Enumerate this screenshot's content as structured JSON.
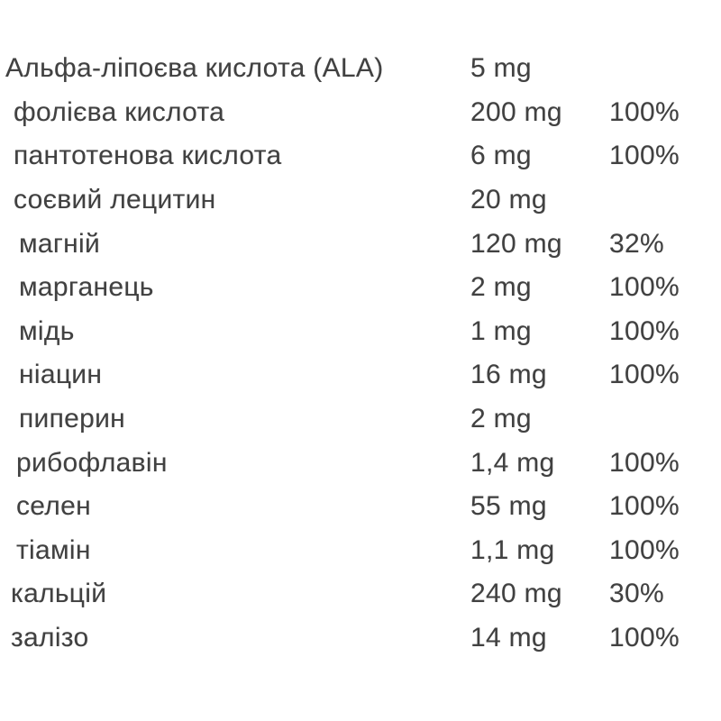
{
  "page": {
    "background_color": "#ffffff",
    "text_color": "#414141"
  },
  "supplement_facts": {
    "columns": [
      "nutrient",
      "amount",
      "daily_value_percent"
    ],
    "rows": [
      {
        "name": "Альфа-ліпоєва кислота (ALA)",
        "amount": "5 mg",
        "daily_value": ""
      },
      {
        "name": "фолієва кислота",
        "amount": "200 mg",
        "daily_value": "100%"
      },
      {
        "name": "пантотенова кислота",
        "amount": "6 mg",
        "daily_value": "100%"
      },
      {
        "name": "соєвий лецитин",
        "amount": "20 mg",
        "daily_value": ""
      },
      {
        "name": "магній",
        "amount": "120 mg",
        "daily_value": "32%"
      },
      {
        "name": "марганець",
        "amount": "2 mg",
        "daily_value": "100%"
      },
      {
        "name": "мідь",
        "amount": "1 mg",
        "daily_value": "100%"
      },
      {
        "name": "ніацин",
        "amount": "16 mg",
        "daily_value": "100%"
      },
      {
        "name": "пиперин",
        "amount": "2 mg",
        "daily_value": ""
      },
      {
        "name": "рибофлавін",
        "amount": "1,4 mg",
        "daily_value": "100%"
      },
      {
        "name": "селен",
        "amount": "55 mg",
        "daily_value": "100%"
      },
      {
        "name": "тіамін",
        "amount": "1,1 mg",
        "daily_value": "100%"
      },
      {
        "name": "кальцій",
        "amount": "240 mg",
        "daily_value": "30%"
      },
      {
        "name": "залізо",
        "amount": "14 mg",
        "daily_value": "100%"
      }
    ]
  }
}
